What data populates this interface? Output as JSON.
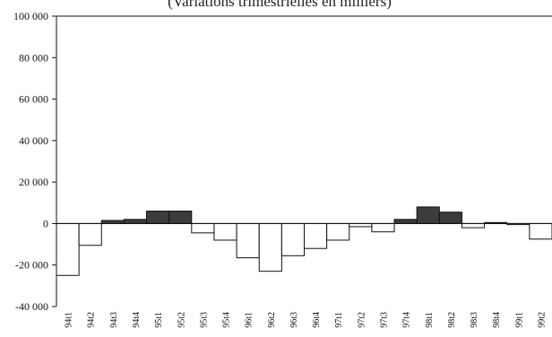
{
  "chart_data": {
    "type": "bar",
    "title": "(Variations trimestrielles en milliers)",
    "xlabel": "",
    "ylabel": "",
    "ylim": [
      -40000,
      100000
    ],
    "yticks": [
      -40000,
      -20000,
      0,
      20000,
      40000,
      60000,
      80000,
      100000
    ],
    "ytick_labels": [
      "-40 000",
      "-20 000",
      "0",
      "20 000",
      "40 000",
      "60 000",
      "80 000",
      "100 000"
    ],
    "grid": false,
    "legend": "none",
    "categories": [
      "94t1",
      "94t2",
      "94t3",
      "94t4",
      "95t1",
      "95t2",
      "95t3",
      "95t4",
      "96t1",
      "96t2",
      "96t3",
      "96t4",
      "97t1",
      "97t2",
      "97t3",
      "97t4",
      "98t1",
      "98t2",
      "98t3",
      "98t4",
      "99t1",
      "99t2"
    ],
    "values": [
      -25000,
      -10500,
      1500,
      2000,
      6000,
      6000,
      -4500,
      -8000,
      -16500,
      -23000,
      -15500,
      -12000,
      -8000,
      -1500,
      -4000,
      2000,
      8000,
      5500,
      -2000,
      500,
      -500,
      -7500
    ],
    "colors": {
      "positive_fill": "#3c3c3c",
      "negative_fill": "#ffffff",
      "bar_stroke": "#111111",
      "axis": "#111111"
    }
  }
}
